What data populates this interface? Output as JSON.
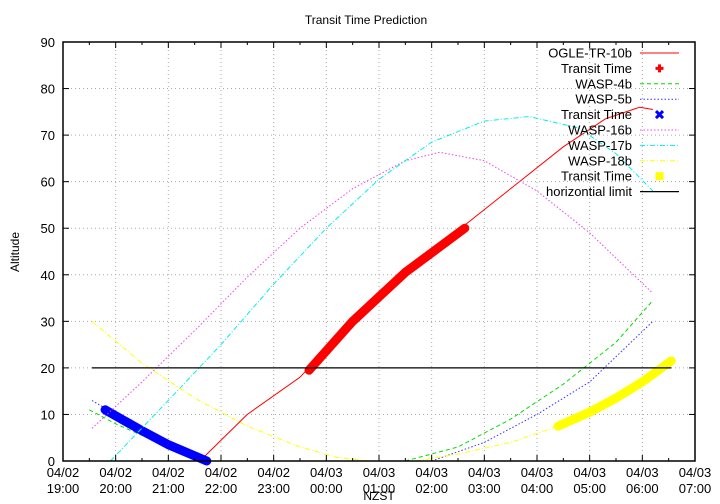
{
  "chart_data": {
    "type": "line",
    "title": "Transit Time Prediction",
    "xlabel": "NZST",
    "ylabel": "Altitude",
    "ylim": [
      0,
      90
    ],
    "yticks": [
      0,
      10,
      20,
      30,
      40,
      50,
      60,
      70,
      80,
      90
    ],
    "xrange_hours": [
      0,
      12
    ],
    "xtick_labels": [
      [
        "04/02",
        "19:00"
      ],
      [
        "04/02",
        "20:00"
      ],
      [
        "04/02",
        "21:00"
      ],
      [
        "04/02",
        "22:00"
      ],
      [
        "04/02",
        "23:00"
      ],
      [
        "04/03",
        "00:00"
      ],
      [
        "04/03",
        "01:00"
      ],
      [
        "04/03",
        "02:00"
      ],
      [
        "04/03",
        "03:00"
      ],
      [
        "04/03",
        "04:00"
      ],
      [
        "04/03",
        "05:00"
      ],
      [
        "04/03",
        "06:00"
      ],
      [
        "04/03",
        "07:00"
      ]
    ],
    "grid": true,
    "legend_position": "top-right",
    "series": [
      {
        "name": "OGLE-TR-10b",
        "style": "line",
        "color": "#ff0000",
        "x": [
          2.6,
          3.5,
          4.5,
          5.5,
          6.5,
          7.5,
          8.5,
          9.5,
          10.3,
          10.95,
          11.2
        ],
        "y": [
          0,
          10,
          18,
          30,
          40.5,
          49.5,
          58.5,
          67.5,
          73.5,
          76,
          75.5
        ]
      },
      {
        "name": "Transit Time",
        "style": "thick",
        "color": "#ff0000",
        "x": [
          4.67,
          5.5,
          6.5,
          7.63
        ],
        "y": [
          19.5,
          30,
          40.5,
          50
        ]
      },
      {
        "name": "WASP-4b",
        "style": "dashed",
        "color": "#00dd00",
        "x": [
          0.5,
          1.0,
          1.5,
          2.0,
          2.55,
          null,
          6.5,
          7.5,
          8.5,
          9.5,
          10.5,
          11.2
        ],
        "y": [
          11,
          8,
          5.5,
          3,
          0,
          null,
          0,
          3,
          9,
          16.5,
          25.5,
          34.5
        ]
      },
      {
        "name": "WASP-5b",
        "style": "dotted",
        "color": "#3333ff",
        "x": [
          0.55,
          1.0,
          1.5,
          2.0,
          2.7,
          null,
          7.0,
          8.0,
          9.0,
          10.0,
          11.2
        ],
        "y": [
          13,
          10,
          7,
          4,
          0,
          null,
          0,
          4,
          10,
          17,
          30
        ]
      },
      {
        "name": "Transit Time",
        "style": "thick",
        "color": "#0000ff",
        "x": [
          0.8,
          1.5,
          2.0,
          2.73
        ],
        "y": [
          11,
          6.5,
          3.5,
          0
        ]
      },
      {
        "name": "WASP-16b",
        "style": "dotted",
        "color": "#ee44ee",
        "x": [
          0.55,
          1.5,
          2.5,
          3.5,
          4.5,
          5.5,
          6.5,
          7.15,
          8.0,
          9.0,
          10.0,
          11.2
        ],
        "y": [
          7,
          17,
          28,
          39.5,
          50,
          58.5,
          64.5,
          66.3,
          64.5,
          58,
          49,
          36
        ]
      },
      {
        "name": "WASP-17b",
        "style": "dashdot",
        "color": "#00eeee",
        "x": [
          0.9,
          2.0,
          3.0,
          4.0,
          5.0,
          6.0,
          7.0,
          8.0,
          8.85,
          9.8,
          10.5,
          11.2
        ],
        "y": [
          0,
          13,
          25,
          38,
          50,
          60.5,
          68.5,
          73,
          74,
          71.5,
          66,
          58
        ]
      },
      {
        "name": "WASP-18b",
        "style": "dashdot",
        "color": "#ffff00",
        "x": [
          0.55,
          1.5,
          2.5,
          3.5,
          4.5,
          5.2,
          5.8,
          null,
          6.7,
          7.5,
          8.5,
          9.4
        ],
        "y": [
          30,
          21,
          13.5,
          7.5,
          3,
          0.8,
          0,
          null,
          0,
          1.5,
          4,
          7.5
        ]
      },
      {
        "name": "Transit Time",
        "style": "thick",
        "color": "#ffff00",
        "x": [
          9.4,
          10.0,
          10.5,
          11.0,
          11.55
        ],
        "y": [
          7.5,
          10.5,
          13.5,
          17,
          21.5
        ]
      },
      {
        "name": "horizontial limit",
        "style": "line",
        "color": "#000000",
        "x": [
          0.55,
          11.55
        ],
        "y": [
          20,
          20
        ]
      }
    ]
  },
  "legend": [
    {
      "label": "OGLE-TR-10b",
      "kind": "line",
      "color": "#ff0000"
    },
    {
      "label": "Transit Time",
      "kind": "plus",
      "color": "#ff0000"
    },
    {
      "label": "WASP-4b",
      "kind": "dashed",
      "color": "#00dd00"
    },
    {
      "label": "WASP-5b",
      "kind": "dotted",
      "color": "#3333ff"
    },
    {
      "label": "Transit Time",
      "kind": "cross",
      "color": "#0000ff"
    },
    {
      "label": "WASP-16b",
      "kind": "dotted",
      "color": "#ee44ee"
    },
    {
      "label": "WASP-17b",
      "kind": "dashdot",
      "color": "#00eeee"
    },
    {
      "label": "WASP-18b",
      "kind": "dashdot",
      "color": "#ffff00"
    },
    {
      "label": "Transit Time",
      "kind": "square",
      "color": "#ffff00"
    },
    {
      "label": "horizontial limit",
      "kind": "line",
      "color": "#000000"
    }
  ]
}
